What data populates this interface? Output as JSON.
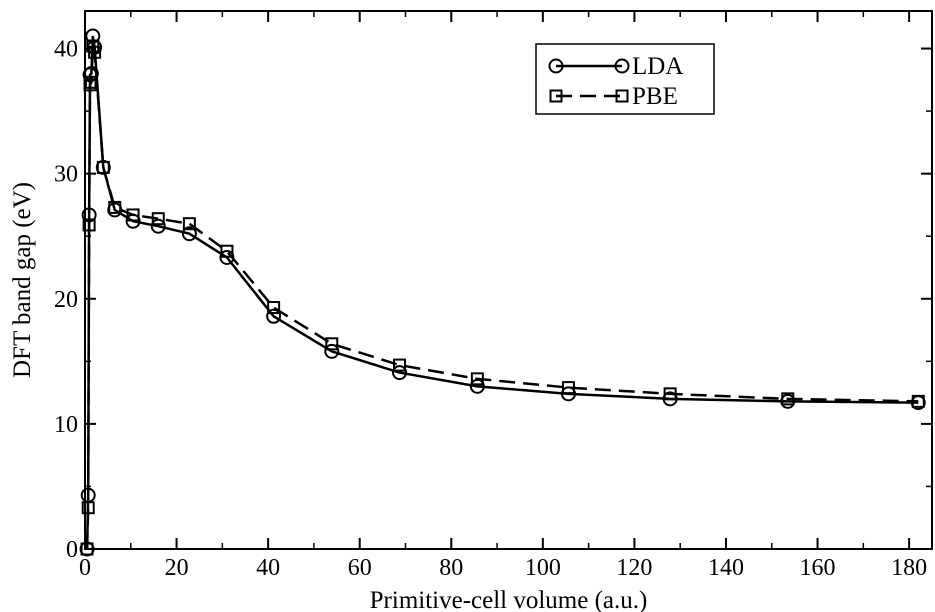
{
  "chart_data": {
    "type": "line",
    "title": "",
    "xlabel": "Primitive-cell volume (a.u.)",
    "ylabel": "DFT band gap (eV)",
    "xlim": [
      0,
      185
    ],
    "ylim": [
      0,
      43
    ],
    "xticks": [
      0,
      20,
      40,
      60,
      80,
      100,
      120,
      140,
      160,
      180
    ],
    "yticks": [
      0,
      10,
      20,
      30,
      40
    ],
    "xtick_labels": [
      "0",
      "20",
      "40",
      "60",
      "80",
      "100",
      "120",
      "140",
      "160",
      "180"
    ],
    "ytick_labels": [
      "0",
      "10",
      "20",
      "30",
      "40"
    ],
    "grid": false,
    "legend_position": "top-right",
    "series": [
      {
        "name": "LDA",
        "line_style": "solid",
        "marker": "circle",
        "color": "#000000",
        "x": [
          0.45,
          0.7,
          0.9,
          1.1,
          1.4,
          1.7,
          2.1,
          4.0,
          6.5,
          10.5,
          16.0,
          22.8,
          31.0,
          41.2,
          53.9,
          68.7,
          85.7,
          105.6,
          127.8,
          153.5,
          182.0
        ],
        "y": [
          0.0,
          4.3,
          26.7,
          37.9,
          38.0,
          41.0,
          40.1,
          30.5,
          27.1,
          26.2,
          25.8,
          25.2,
          23.3,
          18.6,
          15.8,
          14.1,
          13.0,
          12.4,
          12.0,
          11.8,
          11.7
        ]
      },
      {
        "name": "PBE",
        "line_style": "dashed",
        "marker": "square",
        "color": "#000000",
        "x": [
          0.45,
          0.7,
          0.9,
          1.1,
          1.4,
          1.7,
          2.1,
          4.0,
          6.5,
          10.5,
          16.0,
          22.8,
          31.0,
          41.2,
          53.9,
          68.7,
          85.7,
          105.6,
          127.8,
          153.5,
          182.0
        ],
        "y": [
          0.0,
          3.3,
          25.9,
          37.1,
          37.3,
          40.2,
          39.7,
          30.5,
          27.3,
          26.7,
          26.4,
          26.0,
          23.8,
          19.3,
          16.4,
          14.7,
          13.6,
          12.9,
          12.4,
          12.0,
          11.8
        ]
      }
    ]
  }
}
